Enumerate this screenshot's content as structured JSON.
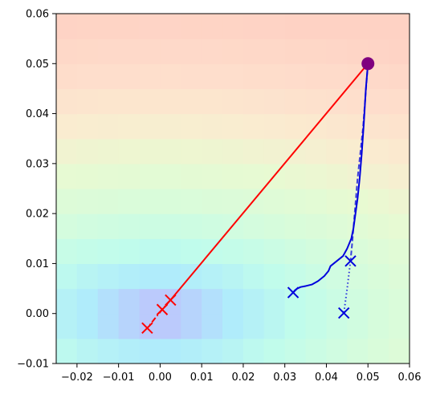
{
  "chart_data": {
    "type": "line",
    "title": "",
    "xlabel": "",
    "ylabel": "",
    "xlim": [
      -0.025,
      0.06
    ],
    "ylim": [
      -0.01,
      0.06
    ],
    "x_ticks": [
      -0.02,
      -0.01,
      0.0,
      0.01,
      0.02,
      0.03,
      0.04,
      0.05,
      0.06
    ],
    "x_tick_labels": [
      "−0.02",
      "−0.01",
      "0.00",
      "0.01",
      "0.02",
      "0.03",
      "0.04",
      "0.05",
      "0.06"
    ],
    "y_ticks": [
      -0.01,
      0.0,
      0.01,
      0.02,
      0.03,
      0.04,
      0.05,
      0.06
    ],
    "y_tick_labels": [
      "−0.01",
      "0.00",
      "0.01",
      "0.02",
      "0.03",
      "0.04",
      "0.05",
      "0.06"
    ],
    "grid": false,
    "legend": "none",
    "background": "filled contour, minimum near (0.0, 0.0)",
    "colors": {
      "red": "#ff0000",
      "blue": "#0000dd",
      "start": "#7f007f"
    },
    "start_point": {
      "x": 0.05,
      "y": 0.05
    },
    "series": [
      {
        "color": "red",
        "style": "solid",
        "points": [
          [
            0.05,
            0.05
          ],
          [
            0.0025,
            0.0027
          ]
        ]
      },
      {
        "color": "red",
        "style": "dashdot",
        "points": [
          [
            0.0025,
            0.0027
          ],
          [
            0.0005,
            0.0008
          ],
          [
            -0.0031,
            -0.0029
          ]
        ]
      },
      {
        "color": "blue",
        "style": "solid",
        "points": [
          [
            0.05,
            0.05
          ],
          [
            0.0495,
            0.045
          ],
          [
            0.049,
            0.038
          ],
          [
            0.0485,
            0.032
          ],
          [
            0.048,
            0.027
          ],
          [
            0.0475,
            0.023
          ],
          [
            0.047,
            0.02
          ],
          [
            0.0465,
            0.017
          ],
          [
            0.046,
            0.015
          ],
          [
            0.045,
            0.013
          ],
          [
            0.044,
            0.0115
          ],
          [
            0.0425,
            0.0105
          ],
          [
            0.041,
            0.0095
          ],
          [
            0.0405,
            0.0085
          ],
          [
            0.0395,
            0.0075
          ],
          [
            0.038,
            0.0065
          ],
          [
            0.0365,
            0.0058
          ],
          [
            0.035,
            0.0055
          ],
          [
            0.0338,
            0.0053
          ],
          [
            0.033,
            0.005
          ],
          [
            0.0325,
            0.0047
          ],
          [
            0.032,
            0.0042
          ]
        ]
      },
      {
        "color": "blue",
        "style": "dashed",
        "points": [
          [
            0.05,
            0.05
          ],
          [
            0.0488,
            0.037
          ],
          [
            0.0475,
            0.027
          ],
          [
            0.0468,
            0.02
          ],
          [
            0.0462,
            0.014
          ],
          [
            0.0458,
            0.0105
          ]
        ]
      },
      {
        "color": "blue",
        "style": "dotted",
        "points": [
          [
            0.0458,
            0.0105
          ],
          [
            0.045,
            0.005
          ],
          [
            0.0442,
            0.0001
          ]
        ]
      }
    ],
    "markers": [
      {
        "type": "circle",
        "color": "start",
        "x": 0.05,
        "y": 0.05
      },
      {
        "type": "x",
        "color": "red",
        "x": 0.0025,
        "y": 0.0027
      },
      {
        "type": "x",
        "color": "red",
        "x": 0.0005,
        "y": 0.0008
      },
      {
        "type": "x",
        "color": "red",
        "x": -0.0031,
        "y": -0.0029
      },
      {
        "type": "x",
        "color": "blue",
        "x": 0.032,
        "y": 0.0042
      },
      {
        "type": "x",
        "color": "blue",
        "x": 0.0458,
        "y": 0.0105
      },
      {
        "type": "x",
        "color": "blue",
        "x": 0.0442,
        "y": 0.0001
      }
    ]
  }
}
